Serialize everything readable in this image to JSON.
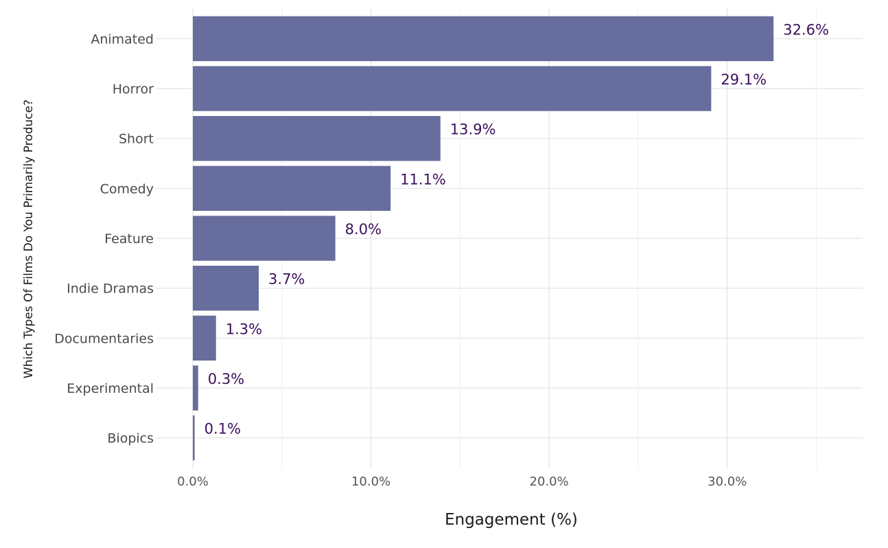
{
  "chart_data": {
    "type": "bar",
    "orientation": "horizontal",
    "categories": [
      "Animated",
      "Horror",
      "Short",
      "Comedy",
      "Feature",
      "Indie Dramas",
      "Documentaries",
      "Experimental",
      "Biopics"
    ],
    "values": [
      32.6,
      29.1,
      13.9,
      11.1,
      8.0,
      3.7,
      1.3,
      0.3,
      0.1
    ],
    "data_labels": [
      "32.6%",
      "29.1%",
      "13.9%",
      "11.1%",
      "8.0%",
      "3.7%",
      "1.3%",
      "0.3%",
      "0.1%"
    ],
    "title": "",
    "xlabel": "Engagement (%)",
    "ylabel": "Which Types Of Films Do You Primarily Produce?",
    "xlim": [
      0,
      37.6
    ],
    "x_ticks": [
      0,
      10,
      20,
      30
    ],
    "x_tick_labels": [
      "0.0%",
      "10.0%",
      "20.0%",
      "30.0%"
    ],
    "grid": true,
    "colors": {
      "bar": "#646a9a",
      "label": "#3b0f5a",
      "grid": "#e3e3e3"
    }
  }
}
